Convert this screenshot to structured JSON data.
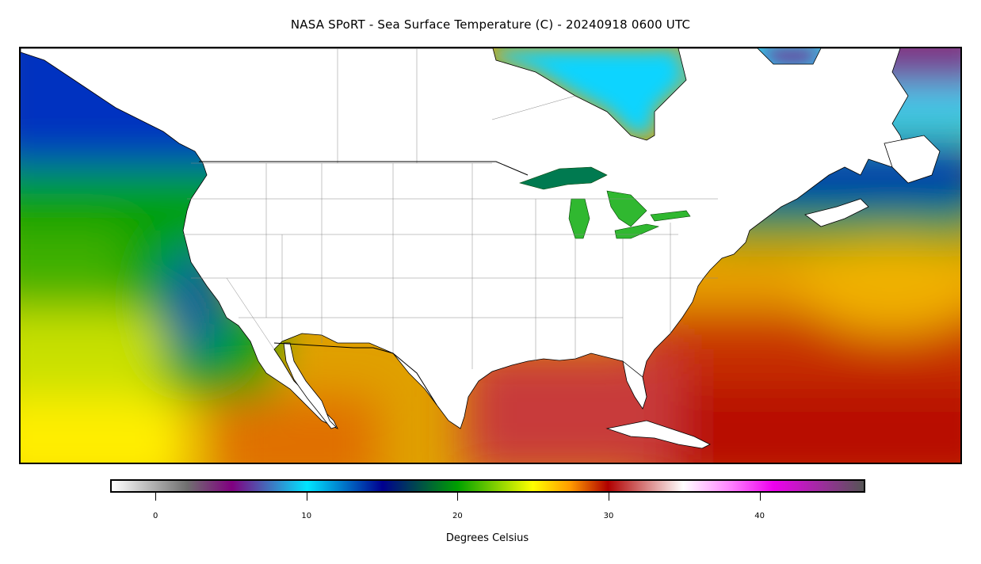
{
  "title": "NASA SPoRT - Sea Surface Temperature (C) - 20240918 0600 UTC",
  "colorbar": {
    "label": "Degrees Celsius",
    "min": -3,
    "max": 47,
    "ticks": [
      "0",
      "10",
      "20",
      "30",
      "40"
    ],
    "tick_values": [
      0,
      10,
      20,
      30,
      40
    ],
    "stops": [
      {
        "value": -3,
        "color": "#ffffff"
      },
      {
        "value": 2,
        "color": "#707070"
      },
      {
        "value": 5,
        "color": "#800080"
      },
      {
        "value": 10,
        "color": "#00e5ff"
      },
      {
        "value": 15,
        "color": "#000090"
      },
      {
        "value": 20,
        "color": "#00a000"
      },
      {
        "value": 25,
        "color": "#ffff00"
      },
      {
        "value": 27.5,
        "color": "#ff9a00"
      },
      {
        "value": 30,
        "color": "#b00000"
      },
      {
        "value": 35,
        "color": "#ffffff"
      },
      {
        "value": 38,
        "color": "#ff88ff"
      },
      {
        "value": 41,
        "color": "#ee00ee"
      },
      {
        "value": 47,
        "color": "#555555"
      }
    ]
  },
  "colors": {
    "land": "#ffffff",
    "borders": "#000000",
    "state_lines": "#808080"
  }
}
